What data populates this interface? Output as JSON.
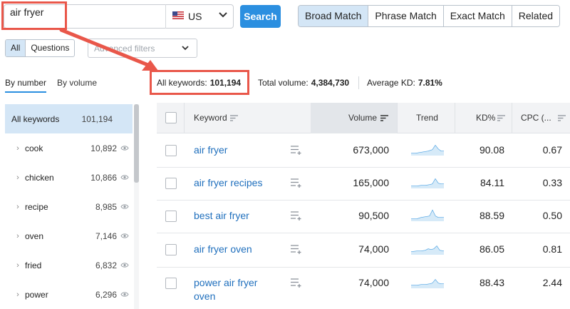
{
  "search": {
    "query": "air fryer",
    "database": "US",
    "button_label": "Search"
  },
  "match_tabs": [
    "Broad Match",
    "Phrase Match",
    "Exact Match",
    "Related"
  ],
  "filter_toggles": [
    "All",
    "Questions"
  ],
  "advanced_filters_placeholder": "Advanced filters",
  "group_tabs": {
    "by_number": "By number",
    "by_volume": "By volume"
  },
  "stats": {
    "all_keywords_label": "All keywords:",
    "all_keywords_value": "101,194",
    "total_volume_label": "Total volume:",
    "total_volume_value": "4,384,730",
    "avg_kd_label": "Average KD:",
    "avg_kd_value": "7.81%"
  },
  "sidebar": {
    "items": [
      {
        "label": "All keywords",
        "count": "101,194"
      },
      {
        "label": "cook",
        "count": "10,892"
      },
      {
        "label": "chicken",
        "count": "10,866"
      },
      {
        "label": "recipe",
        "count": "8,985"
      },
      {
        "label": "oven",
        "count": "7,146"
      },
      {
        "label": "fried",
        "count": "6,832"
      },
      {
        "label": "power",
        "count": "6,296"
      }
    ]
  },
  "table": {
    "headers": {
      "keyword": "Keyword",
      "volume": "Volume",
      "trend": "Trend",
      "kd": "KD%",
      "cpc": "CPC (..."
    },
    "rows": [
      {
        "keyword": "air fryer",
        "volume": "673,000",
        "kd": "90.08",
        "cpc": "0.67"
      },
      {
        "keyword": "air fryer recipes",
        "volume": "165,000",
        "kd": "84.11",
        "cpc": "0.33"
      },
      {
        "keyword": "best air fryer",
        "volume": "90,500",
        "kd": "88.59",
        "cpc": "0.50"
      },
      {
        "keyword": "air fryer oven",
        "volume": "74,000",
        "kd": "86.05",
        "cpc": "0.81"
      },
      {
        "keyword": "power air fryer oven",
        "volume": "74,000",
        "kd": "88.43",
        "cpc": "2.44"
      }
    ]
  },
  "colors": {
    "accent": "#2b8fe0",
    "highlight": "#d4e6f6",
    "annotation": "#e9574a",
    "link": "#1f6fbd"
  }
}
